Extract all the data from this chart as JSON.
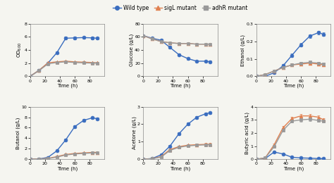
{
  "time": [
    0,
    12,
    24,
    36,
    48,
    60,
    72,
    84,
    90
  ],
  "OD600": {
    "wt": [
      0,
      0.9,
      2.0,
      3.6,
      5.8,
      5.85,
      5.9,
      5.85,
      5.8
    ],
    "sigL": [
      0,
      0.9,
      2.05,
      2.2,
      2.3,
      2.2,
      2.15,
      2.1,
      2.05
    ],
    "adhR": [
      0,
      0.85,
      1.9,
      2.1,
      2.2,
      2.1,
      2.05,
      2.0,
      2.0
    ],
    "wt_err": [
      0.03,
      0.06,
      0.1,
      0.18,
      0.2,
      0.2,
      0.18,
      0.18,
      0.18
    ],
    "sigL_err": [
      0.03,
      0.06,
      0.08,
      0.1,
      0.1,
      0.1,
      0.1,
      0.1,
      0.1
    ],
    "adhR_err": [
      0.03,
      0.06,
      0.08,
      0.1,
      0.1,
      0.1,
      0.1,
      0.1,
      0.1
    ],
    "ylabel": "OD$_{600}$",
    "ylim": [
      0,
      8
    ],
    "yticks": [
      0,
      2,
      4,
      6,
      8
    ]
  },
  "Glucose": {
    "wt": [
      62,
      58,
      55,
      44,
      33,
      27,
      23,
      23,
      22
    ],
    "sigL": [
      62,
      57,
      53,
      51,
      50,
      50,
      49,
      49,
      49
    ],
    "adhR": [
      62,
      57,
      53,
      51,
      50,
      50,
      49,
      49,
      49
    ],
    "wt_err": [
      1.0,
      1.0,
      1.5,
      2.0,
      2.0,
      1.5,
      1.5,
      1.5,
      1.5
    ],
    "sigL_err": [
      1.0,
      1.0,
      1.0,
      1.0,
      1.0,
      1.0,
      1.0,
      1.0,
      1.0
    ],
    "adhR_err": [
      1.0,
      1.0,
      1.0,
      1.0,
      1.0,
      1.0,
      1.0,
      1.0,
      1.0
    ],
    "ylabel": "Glucose (g/L)",
    "ylim": [
      0,
      80
    ],
    "yticks": [
      0,
      20,
      40,
      60,
      80
    ]
  },
  "Ethanol": {
    "wt": [
      0,
      0,
      0.02,
      0.06,
      0.12,
      0.18,
      0.23,
      0.25,
      0.24
    ],
    "sigL": [
      0,
      0.01,
      0.03,
      0.05,
      0.065,
      0.07,
      0.075,
      0.07,
      0.065
    ],
    "adhR": [
      0,
      0.01,
      0.03,
      0.05,
      0.065,
      0.075,
      0.08,
      0.075,
      0.07
    ],
    "wt_err": [
      0,
      0,
      0.005,
      0.008,
      0.01,
      0.01,
      0.01,
      0.01,
      0.01
    ],
    "sigL_err": [
      0,
      0.003,
      0.004,
      0.006,
      0.007,
      0.007,
      0.007,
      0.007,
      0.007
    ],
    "adhR_err": [
      0,
      0.003,
      0.004,
      0.006,
      0.007,
      0.007,
      0.007,
      0.007,
      0.007
    ],
    "ylabel": "Ethanol (g/L)",
    "ylim": [
      0,
      0.3
    ],
    "yticks": [
      0.0,
      0.1,
      0.2,
      0.3
    ]
  },
  "Butanol": {
    "wt": [
      0,
      0.05,
      0.35,
      1.6,
      3.7,
      6.2,
      7.4,
      7.9,
      7.7
    ],
    "sigL": [
      0,
      0.05,
      0.15,
      0.5,
      0.9,
      1.1,
      1.2,
      1.3,
      1.3
    ],
    "adhR": [
      0,
      0.05,
      0.12,
      0.4,
      0.8,
      1.0,
      1.1,
      1.2,
      1.2
    ],
    "wt_err": [
      0,
      0.04,
      0.1,
      0.15,
      0.2,
      0.25,
      0.25,
      0.2,
      0.2
    ],
    "sigL_err": [
      0,
      0.03,
      0.05,
      0.08,
      0.1,
      0.1,
      0.1,
      0.1,
      0.1
    ],
    "adhR_err": [
      0,
      0.03,
      0.05,
      0.08,
      0.1,
      0.1,
      0.1,
      0.1,
      0.1
    ],
    "ylabel": "Butanol (g/L)",
    "ylim": [
      0,
      10
    ],
    "yticks": [
      0,
      2,
      4,
      6,
      8,
      10
    ]
  },
  "Acetone": {
    "wt": [
      0,
      0.04,
      0.25,
      0.75,
      1.45,
      2.0,
      2.4,
      2.6,
      2.65
    ],
    "sigL": [
      0,
      0.03,
      0.15,
      0.55,
      0.72,
      0.8,
      0.83,
      0.85,
      0.85
    ],
    "adhR": [
      0,
      0.03,
      0.12,
      0.5,
      0.68,
      0.76,
      0.8,
      0.82,
      0.83
    ],
    "wt_err": [
      0,
      0.02,
      0.05,
      0.07,
      0.08,
      0.08,
      0.08,
      0.07,
      0.07
    ],
    "sigL_err": [
      0,
      0.02,
      0.04,
      0.06,
      0.07,
      0.07,
      0.07,
      0.07,
      0.07
    ],
    "adhR_err": [
      0,
      0.02,
      0.04,
      0.06,
      0.07,
      0.07,
      0.07,
      0.07,
      0.07
    ],
    "ylabel": "Acetone (g/L)",
    "ylim": [
      0,
      3
    ],
    "yticks": [
      0,
      1,
      2,
      3
    ]
  },
  "ButyricAcid": {
    "wt": [
      0,
      0.05,
      0.55,
      0.4,
      0.15,
      0.1,
      0.08,
      0.05,
      0.05
    ],
    "sigL": [
      0,
      0.1,
      1.1,
      2.4,
      3.1,
      3.3,
      3.3,
      3.2,
      3.0
    ],
    "adhR": [
      0,
      0.1,
      0.95,
      2.2,
      2.9,
      3.0,
      3.05,
      2.95,
      2.9
    ],
    "wt_err": [
      0,
      0.02,
      0.05,
      0.06,
      0.05,
      0.04,
      0.04,
      0.04,
      0.04
    ],
    "sigL_err": [
      0,
      0.05,
      0.1,
      0.15,
      0.15,
      0.15,
      0.15,
      0.12,
      0.12
    ],
    "adhR_err": [
      0,
      0.05,
      0.1,
      0.12,
      0.12,
      0.12,
      0.12,
      0.12,
      0.12
    ],
    "ylabel": "Butyric acid (g/L)",
    "ylim": [
      0,
      4
    ],
    "yticks": [
      0,
      1,
      2,
      3,
      4
    ]
  },
  "color_wt": "#3a6dbf",
  "color_sigL": "#e08050",
  "color_adhR": "#999999",
  "marker_wt": "o",
  "marker_sigL": "^",
  "marker_adhR": "s",
  "legend_labels": [
    "Wild type",
    "sigL mutant",
    "adhR mutant"
  ],
  "xlabel": "Time (h)",
  "markersize": 3.5,
  "linewidth": 1.0,
  "bg_color": "#f5f5f0"
}
